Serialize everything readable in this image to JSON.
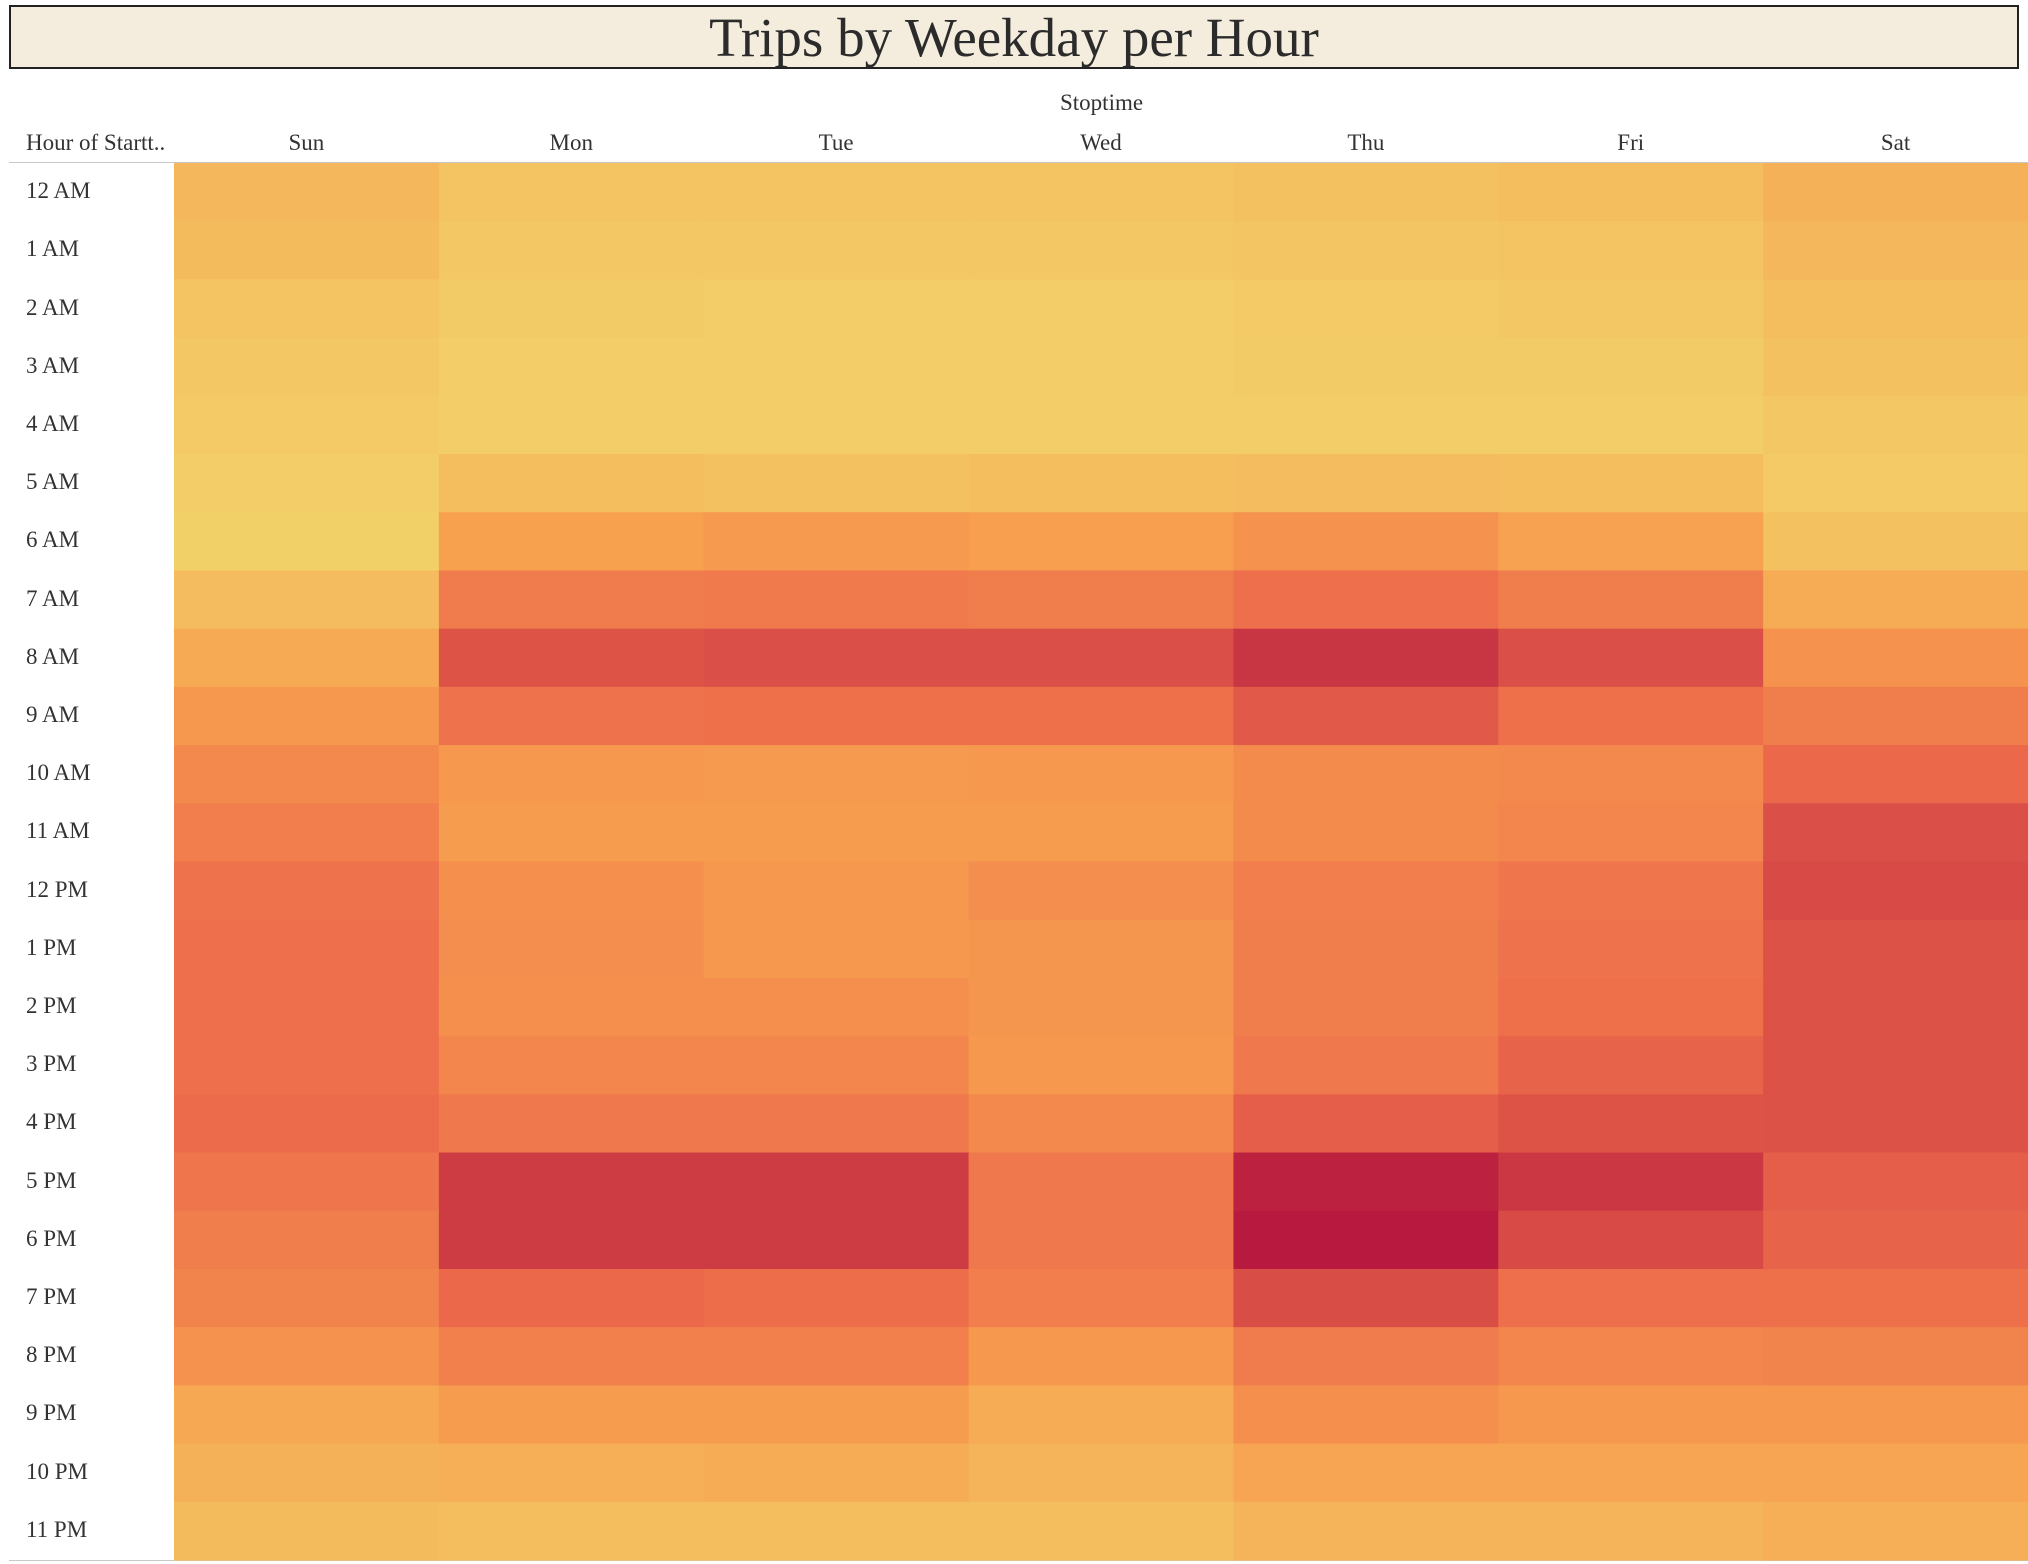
{
  "chart_data": {
    "type": "heatmap",
    "title": "Trips by Weekday per Hour",
    "column_field": "Stoptime",
    "row_field": "Hour of Startt..",
    "columns": [
      "Sun",
      "Mon",
      "Tue",
      "Wed",
      "Thu",
      "Fri",
      "Sat"
    ],
    "rows": [
      "12 AM",
      "1 AM",
      "2 AM",
      "3 AM",
      "4 AM",
      "5 AM",
      "6 AM",
      "7 AM",
      "8 AM",
      "9 AM",
      "10 AM",
      "11 AM",
      "12 PM",
      "1 PM",
      "2 PM",
      "3 PM",
      "4 PM",
      "5 PM",
      "6 PM",
      "7 PM",
      "8 PM",
      "9 PM",
      "10 PM",
      "11 PM"
    ],
    "values": [
      [
        18,
        10,
        10,
        10,
        12,
        14,
        22
      ],
      [
        16,
        8,
        8,
        8,
        9,
        10,
        18
      ],
      [
        10,
        5,
        4,
        4,
        6,
        7,
        14
      ],
      [
        7,
        4,
        4,
        4,
        5,
        5,
        12
      ],
      [
        6,
        4,
        4,
        4,
        4,
        4,
        7
      ],
      [
        4,
        14,
        12,
        14,
        15,
        14,
        6
      ],
      [
        2,
        33,
        37,
        34,
        42,
        32,
        12
      ],
      [
        15,
        57,
        58,
        56,
        65,
        56,
        26
      ],
      [
        27,
        76,
        78,
        78,
        88,
        78,
        42
      ],
      [
        38,
        62,
        64,
        64,
        74,
        64,
        56
      ],
      [
        48,
        38,
        37,
        38,
        47,
        48,
        68
      ],
      [
        55,
        36,
        36,
        36,
        47,
        50,
        78
      ],
      [
        62,
        44,
        38,
        45,
        55,
        60,
        80
      ],
      [
        65,
        45,
        38,
        40,
        56,
        62,
        77
      ],
      [
        65,
        44,
        44,
        40,
        56,
        64,
        77
      ],
      [
        65,
        50,
        50,
        38,
        59,
        70,
        77
      ],
      [
        67,
        59,
        59,
        48,
        72,
        76,
        77
      ],
      [
        60,
        86,
        86,
        59,
        96,
        87,
        72
      ],
      [
        56,
        86,
        86,
        59,
        99,
        80,
        70
      ],
      [
        52,
        68,
        66,
        55,
        79,
        65,
        64
      ],
      [
        42,
        54,
        54,
        38,
        57,
        50,
        52
      ],
      [
        28,
        36,
        36,
        26,
        44,
        38,
        38
      ],
      [
        22,
        24,
        26,
        20,
        30,
        30,
        30
      ],
      [
        16,
        14,
        14,
        14,
        20,
        20,
        24
      ]
    ],
    "color_scale": [
      "#f2d36a",
      "#f7a04f",
      "#ed6c4b",
      "#b5173e"
    ],
    "value_range": [
      0,
      100
    ],
    "legend": "none"
  }
}
